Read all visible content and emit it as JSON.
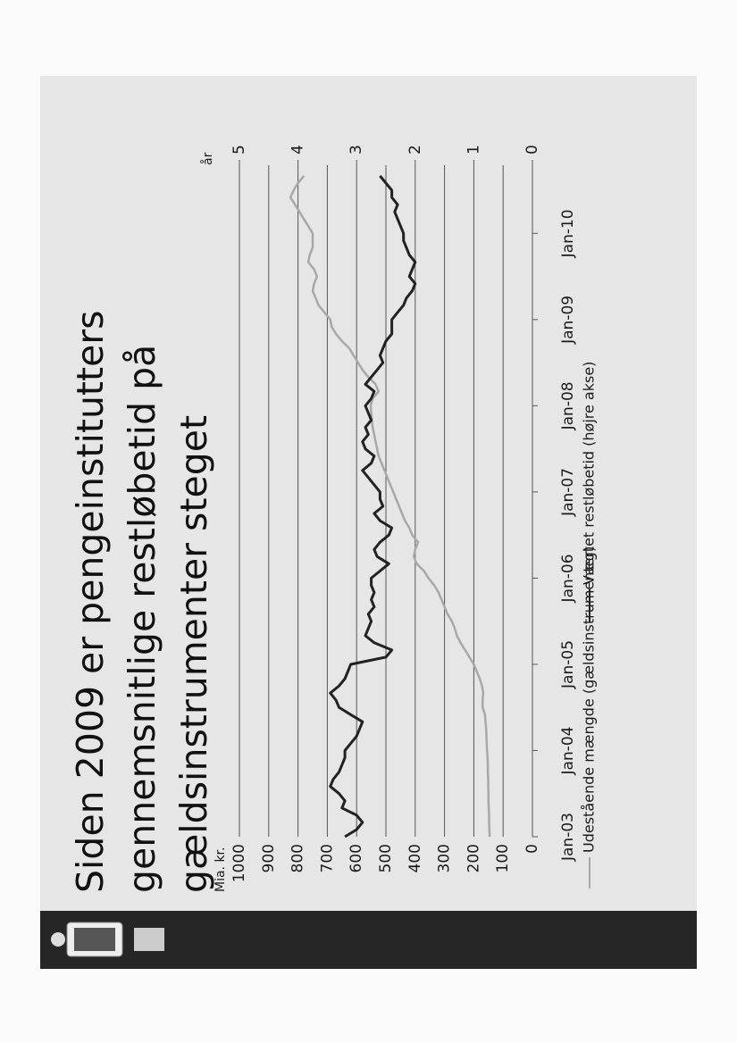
{
  "chart_data": {
    "type": "line",
    "title": [
      "Siden 2009 er pengeinstitutters",
      "gennemsnitlige restløbetid på",
      "gældsinstrumenter steget"
    ],
    "ylabel": "Mia. kr.",
    "y2label": "år",
    "x": [
      "2003-01",
      "2003-02",
      "2003-03",
      "2003-04",
      "2003-05",
      "2003-06",
      "2003-07",
      "2003-08",
      "2003-09",
      "2003-10",
      "2003-11",
      "2003-12",
      "2004-01",
      "2004-02",
      "2004-03",
      "2004-04",
      "2004-05",
      "2004-06",
      "2004-07",
      "2004-08",
      "2004-09",
      "2004-10",
      "2004-11",
      "2004-12",
      "2005-01",
      "2005-02",
      "2005-03",
      "2005-04",
      "2005-05",
      "2005-06",
      "2005-07",
      "2005-08",
      "2005-09",
      "2005-10",
      "2005-11",
      "2005-12",
      "2006-01",
      "2006-02",
      "2006-03",
      "2006-04",
      "2006-05",
      "2006-06",
      "2006-07",
      "2006-08",
      "2006-09",
      "2006-10",
      "2006-11",
      "2006-12",
      "2007-01",
      "2007-02",
      "2007-03",
      "2007-04",
      "2007-05",
      "2007-06",
      "2007-07",
      "2007-08",
      "2007-09",
      "2007-10",
      "2007-11",
      "2007-12",
      "2008-01",
      "2008-02",
      "2008-03",
      "2008-04",
      "2008-05",
      "2008-06",
      "2008-07",
      "2008-08",
      "2008-09",
      "2008-10",
      "2008-11",
      "2008-12",
      "2009-01",
      "2009-02",
      "2009-03",
      "2009-04",
      "2009-05",
      "2009-06",
      "2009-07",
      "2009-08",
      "2009-09",
      "2009-10",
      "2009-11",
      "2009-12",
      "2010-01",
      "2010-02",
      "2010-03",
      "2010-04",
      "2010-05",
      "2010-06",
      "2010-07",
      "2010-08",
      "2010-09"
    ],
    "series": [
      {
        "name": "Udestående mængde (gældsinstrumenter)",
        "color": "#a8a8a8",
        "values": [
          146,
          147,
          148,
          148,
          149,
          150,
          150,
          151,
          151,
          152,
          152,
          153,
          155,
          156,
          157,
          158,
          160,
          162,
          170,
          170,
          168,
          172,
          180,
          190,
          200,
          215,
          230,
          245,
          258,
          265,
          275,
          290,
          300,
          310,
          320,
          335,
          355,
          370,
          395,
          405,
          400,
          390,
          410,
          420,
          435,
          445,
          455,
          465,
          475,
          485,
          495,
          505,
          515,
          525,
          530,
          535,
          540,
          545,
          548,
          550,
          552,
          545,
          525,
          535,
          560,
          580,
          595,
          610,
          625,
          650,
          670,
          685,
          690,
          710,
          730,
          740,
          750,
          745,
          735,
          745,
          765,
          760,
          750,
          750,
          750,
          765,
          780,
          795,
          810,
          826,
          815,
          800,
          780
        ]
      },
      {
        "name": "Vægtet restløbetid (højre akse)",
        "color": "#222222",
        "axis": "y2",
        "values": [
          3.2,
          3.0,
          2.9,
          3.0,
          3.25,
          3.2,
          3.3,
          3.45,
          3.4,
          3.3,
          3.25,
          3.2,
          3.2,
          3.1,
          3.0,
          2.95,
          2.9,
          3.1,
          3.3,
          3.35,
          3.45,
          3.3,
          3.2,
          3.15,
          3.1,
          2.5,
          2.4,
          2.7,
          2.85,
          2.8,
          2.75,
          2.8,
          2.7,
          2.75,
          2.7,
          2.75,
          2.75,
          2.6,
          2.45,
          2.65,
          2.7,
          2.6,
          2.45,
          2.4,
          2.6,
          2.7,
          2.55,
          2.6,
          2.6,
          2.7,
          2.8,
          2.9,
          2.75,
          2.7,
          2.85,
          2.9,
          2.8,
          2.85,
          2.75,
          2.8,
          2.85,
          2.75,
          2.7,
          2.85,
          2.75,
          2.65,
          2.55,
          2.6,
          2.55,
          2.5,
          2.4,
          2.4,
          2.4,
          2.3,
          2.2,
          2.15,
          2.05,
          2.0,
          2.1,
          2.05,
          2.0,
          2.1,
          2.15,
          2.2,
          2.2,
          2.25,
          2.3,
          2.35,
          2.3,
          2.4,
          2.4,
          2.5,
          2.6
        ]
      }
    ],
    "xticks": [
      {
        "value": "2003-01",
        "label": "Jan-03"
      },
      {
        "value": "2004-01",
        "label": "Jan-04"
      },
      {
        "value": "2005-01",
        "label": "Jan-05"
      },
      {
        "value": "2006-01",
        "label": "Jan-06"
      },
      {
        "value": "2007-01",
        "label": "Jan-07"
      },
      {
        "value": "2008-01",
        "label": "Jan-08"
      },
      {
        "value": "2009-01",
        "label": "Jan-09"
      },
      {
        "value": "2010-01",
        "label": "Jan-10"
      }
    ],
    "ylim": [
      0,
      1000
    ],
    "yticks": [
      0,
      100,
      200,
      300,
      400,
      500,
      600,
      700,
      800,
      900,
      1000
    ],
    "y2lim": [
      0,
      5
    ],
    "y2ticks": [
      0,
      1,
      2,
      3,
      4,
      5
    ],
    "grid": true
  }
}
